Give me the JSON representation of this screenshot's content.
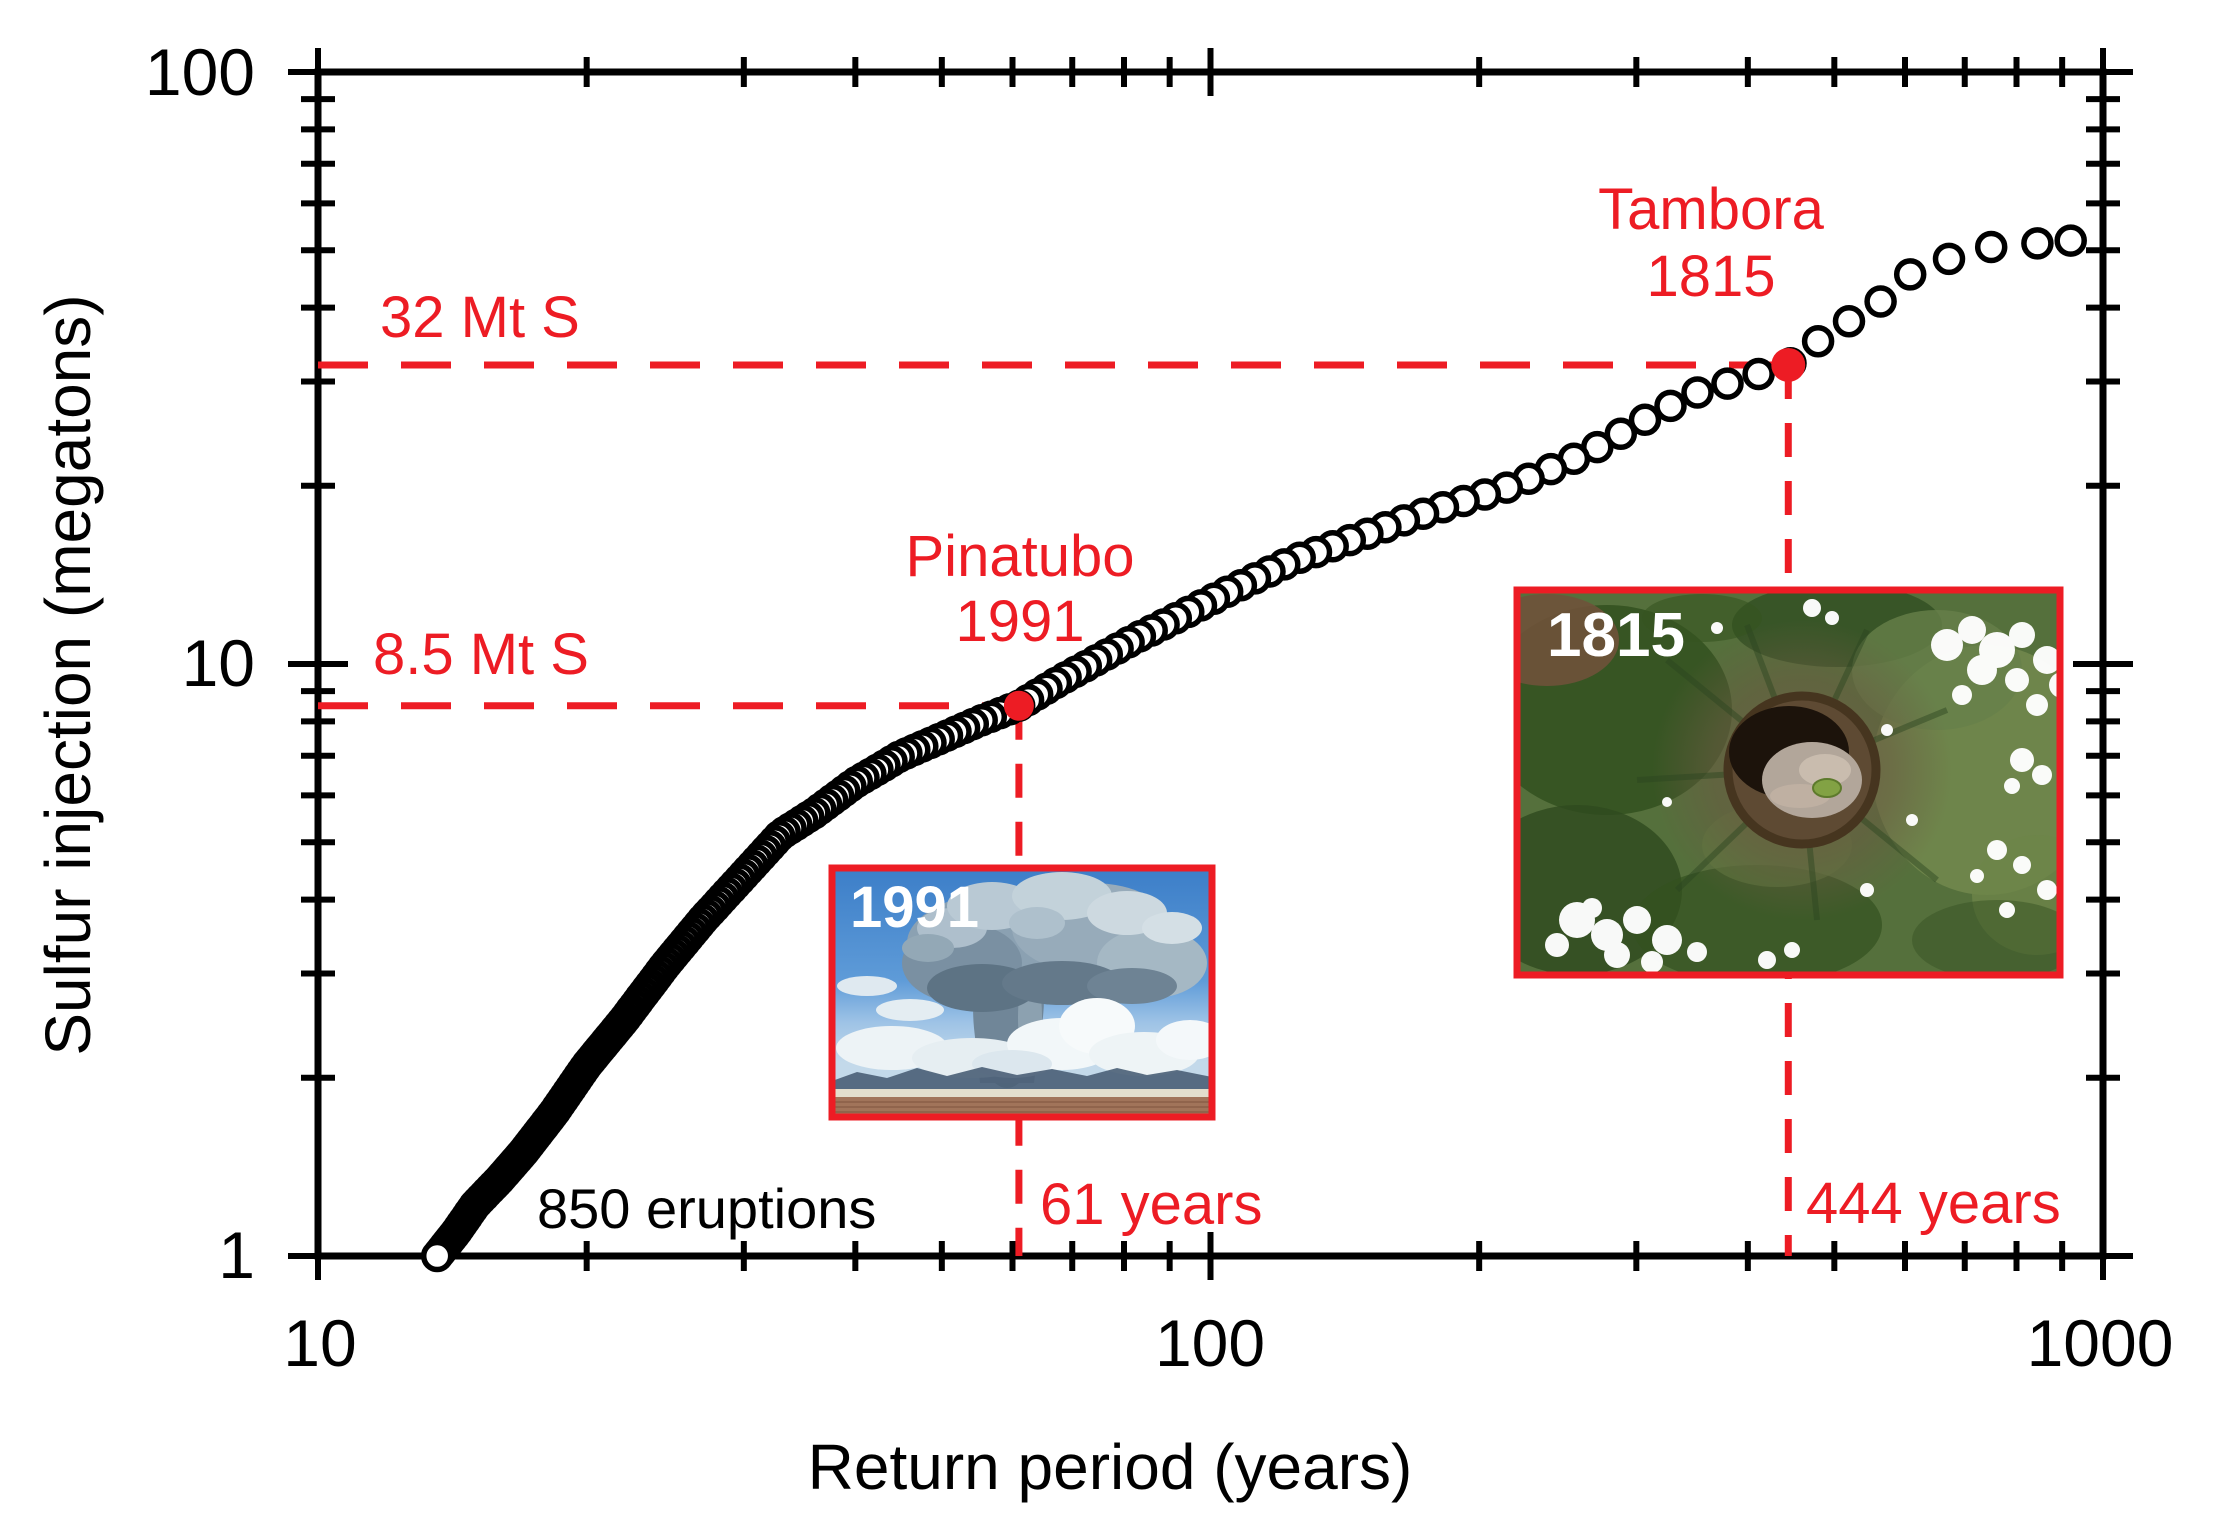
{
  "figure": {
    "background": "#ffffff",
    "accent_red": "#ed1c24",
    "axis": {
      "x_label": "Return period (years)",
      "y_label": "Sulfur injection (megatons)",
      "x_ticks": [
        "10",
        "100",
        "1000"
      ],
      "y_ticks": [
        "1",
        "10",
        "100"
      ]
    },
    "annotations": {
      "sulfur_32": "32 Mt S",
      "sulfur_85": "8.5 Mt S",
      "pinatubo_name": "Pinatubo",
      "pinatubo_year": "1991",
      "tambora_name": "Tambora",
      "tambora_year": "1815",
      "years_61": "61 years",
      "years_444": "444 years",
      "eruption_count": "850 eruptions",
      "inset_pinatubo_year": "1991",
      "inset_tambora_year": "1815"
    }
  },
  "chart_data": {
    "type": "scatter",
    "title": "",
    "xlabel": "Return period (years)",
    "ylabel": "Sulfur injection (megatons)",
    "xscale": "log",
    "yscale": "log",
    "xlim": [
      10,
      1000
    ],
    "ylim": [
      1,
      100
    ],
    "grid": false,
    "marker": "open-circle",
    "n_points_label": "850 eruptions",
    "curve_points": [
      [
        13.6,
        1.0
      ],
      [
        14.3,
        1.1
      ],
      [
        15,
        1.22
      ],
      [
        16,
        1.35
      ],
      [
        17,
        1.5
      ],
      [
        18.4,
        1.75
      ],
      [
        20,
        2.1
      ],
      [
        22,
        2.5
      ],
      [
        24.5,
        3.1
      ],
      [
        27,
        3.7
      ],
      [
        30,
        4.4
      ],
      [
        33,
        5.15
      ],
      [
        36,
        5.6
      ],
      [
        40,
        6.3
      ],
      [
        45,
        7.0
      ],
      [
        50,
        7.5
      ],
      [
        55,
        8.0
      ],
      [
        61,
        8.5
      ],
      [
        68,
        9.4
      ],
      [
        75,
        10.2
      ],
      [
        82,
        11.0
      ],
      [
        89,
        11.7
      ],
      [
        97,
        12.5
      ],
      [
        105,
        13.3
      ],
      [
        115,
        14.2
      ],
      [
        124,
        15.0
      ],
      [
        137,
        15.8
      ],
      [
        150,
        16.6
      ],
      [
        165,
        17.5
      ],
      [
        180,
        18.3
      ],
      [
        200,
        19.2
      ],
      [
        218,
        20.0
      ],
      [
        240,
        21.3
      ],
      [
        260,
        22.5
      ],
      [
        278,
        23.7
      ],
      [
        295,
        25.0
      ],
      [
        320,
        26.8
      ],
      [
        350,
        28.7
      ],
      [
        375,
        29.6
      ],
      [
        400,
        30.5
      ],
      [
        420,
        31.2
      ],
      [
        444,
        32.0
      ],
      [
        478,
        35.0
      ],
      [
        500,
        36.4
      ],
      [
        525,
        38.4
      ],
      [
        549,
        39.2
      ],
      [
        576,
        42.5
      ],
      [
        608,
        45.5
      ],
      [
        640,
        47.4
      ],
      [
        674,
        48.4
      ],
      [
        715,
        50.2
      ],
      [
        763,
        50.8
      ],
      [
        810,
        51.2
      ],
      [
        860,
        51.4
      ],
      [
        920,
        51.9
      ]
    ],
    "highlights": [
      {
        "name": "Pinatubo",
        "year": "1991",
        "return_period_years": 61,
        "sulfur_Mt": 8.5
      },
      {
        "name": "Tambora",
        "year": "1815",
        "return_period_years": 444,
        "sulfur_Mt": 32
      }
    ],
    "reference_lines": {
      "sulfur_Mt": [
        32,
        8.5
      ],
      "return_period_years": [
        61,
        444
      ]
    }
  }
}
